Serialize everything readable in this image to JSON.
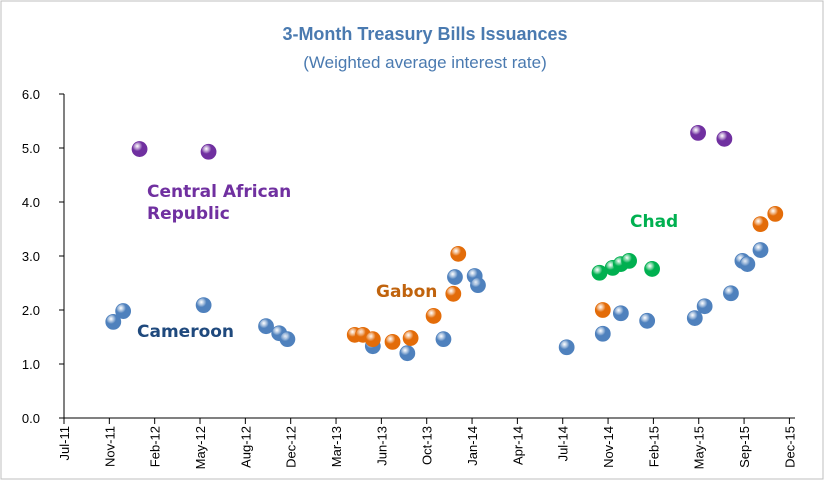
{
  "chart_data": {
    "type": "scatter",
    "title": "3-Month Treasury Bills Issuances",
    "subtitle": "(Weighted average interest rate)",
    "xlim": [
      2011.5,
      2015.95
    ],
    "xticks": [
      {
        "value": 2011.5,
        "label": "Jul-11"
      },
      {
        "value": 2011.776,
        "label": "Nov-11"
      },
      {
        "value": 2012.052,
        "label": "Feb-12"
      },
      {
        "value": 2012.328,
        "label": "May-12"
      },
      {
        "value": 2012.604,
        "label": "Aug-12"
      },
      {
        "value": 2012.88,
        "label": "Dec-12"
      },
      {
        "value": 2013.156,
        "label": "Mar-13"
      },
      {
        "value": 2013.432,
        "label": "Jun-13"
      },
      {
        "value": 2013.708,
        "label": "Oct-13"
      },
      {
        "value": 2013.984,
        "label": "Jan-14"
      },
      {
        "value": 2014.26,
        "label": "Apr-14"
      },
      {
        "value": 2014.536,
        "label": "Jul-14"
      },
      {
        "value": 2014.812,
        "label": "Nov-14"
      },
      {
        "value": 2015.088,
        "label": "Feb-15"
      },
      {
        "value": 2015.364,
        "label": "May-15"
      },
      {
        "value": 2015.64,
        "label": "Sep-15"
      },
      {
        "value": 2015.916,
        "label": "Dec-15"
      }
    ],
    "ylim": [
      0,
      6
    ],
    "yticks": [
      {
        "value": 0,
        "label": "0.0"
      },
      {
        "value": 1,
        "label": "1.0"
      },
      {
        "value": 2,
        "label": "2.0"
      },
      {
        "value": 3,
        "label": "3.0"
      },
      {
        "value": 4,
        "label": "4.0"
      },
      {
        "value": 5,
        "label": "5.0"
      },
      {
        "value": 6,
        "label": "6.0"
      }
    ],
    "series": [
      {
        "name": "Cameroon",
        "color": "#4f81bd",
        "x": [
          2011.8,
          2011.86,
          2012.35,
          2012.73,
          2012.81,
          2012.86,
          2013.38,
          2013.59,
          2013.81,
          2013.88,
          2014.0,
          2014.02,
          2014.56,
          2014.78,
          2014.89,
          2015.05,
          2015.34,
          2015.4,
          2015.56,
          2015.63,
          2015.66,
          2015.74
        ],
        "values": [
          1.78,
          1.98,
          2.09,
          1.7,
          1.57,
          1.46,
          1.33,
          1.2,
          1.46,
          2.61,
          2.63,
          2.46,
          1.31,
          1.56,
          1.94,
          1.8,
          1.85,
          2.07,
          2.31,
          2.91,
          2.85,
          3.11
        ]
      },
      {
        "name": "Gabon",
        "color": "#e36c09",
        "x": [
          2013.27,
          2013.32,
          2013.38,
          2013.5,
          2013.61,
          2013.75,
          2013.87,
          2013.9,
          2014.78,
          2015.74,
          2015.83
        ],
        "values": [
          1.54,
          1.54,
          1.46,
          1.41,
          1.48,
          1.89,
          2.3,
          3.04,
          2.0,
          3.59,
          3.78
        ]
      },
      {
        "name": "Chad",
        "color": "#00b050",
        "x": [
          2014.76,
          2014.84,
          2014.89,
          2014.94,
          2015.08
        ],
        "values": [
          2.69,
          2.78,
          2.85,
          2.91,
          2.76
        ]
      },
      {
        "name": "Central African Republic",
        "color": "#7030a0",
        "x": [
          2011.96,
          2012.38,
          2015.36,
          2015.52
        ],
        "values": [
          4.98,
          4.93,
          5.28,
          5.17
        ]
      }
    ]
  }
}
